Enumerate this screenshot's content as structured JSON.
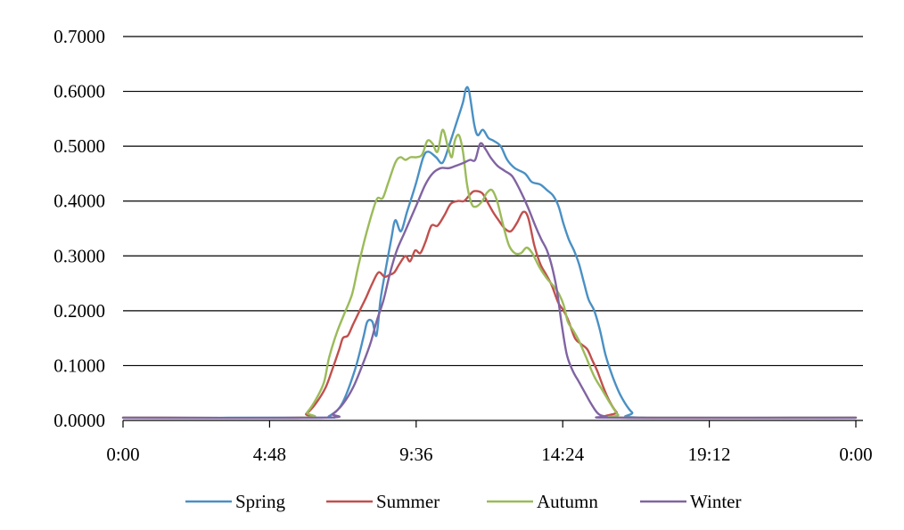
{
  "chart_data": {
    "type": "line",
    "title": "",
    "xlabel": "",
    "ylabel": "",
    "xlim": [
      0,
      1440
    ],
    "ylim": [
      0,
      0.7
    ],
    "x_ticks": [
      {
        "value": 0,
        "label": "0:00"
      },
      {
        "value": 288,
        "label": "4:48"
      },
      {
        "value": 576,
        "label": "9:36"
      },
      {
        "value": 864,
        "label": "14:24"
      },
      {
        "value": 1152,
        "label": "19:12"
      },
      {
        "value": 1440,
        "label": "0:00"
      }
    ],
    "y_ticks": [
      {
        "value": 0,
        "label": "0.0000"
      },
      {
        "value": 0.1,
        "label": "0.1000"
      },
      {
        "value": 0.2,
        "label": "0.2000"
      },
      {
        "value": 0.3,
        "label": "0.3000"
      },
      {
        "value": 0.4,
        "label": "0.4000"
      },
      {
        "value": 0.5,
        "label": "0.5000"
      },
      {
        "value": 0.6,
        "label": "0.6000"
      },
      {
        "value": 0.7,
        "label": "0.7000"
      }
    ],
    "grid": "horizontal",
    "legend_position": "bottom",
    "series": [
      {
        "name": "Spring",
        "color": "#4a90c4",
        "points": [
          [
            0,
            0.005
          ],
          [
            380,
            0.005
          ],
          [
            405,
            0.008
          ],
          [
            430,
            0.03
          ],
          [
            455,
            0.09
          ],
          [
            472,
            0.15
          ],
          [
            480,
            0.18
          ],
          [
            490,
            0.18
          ],
          [
            498,
            0.155
          ],
          [
            506,
            0.22
          ],
          [
            515,
            0.27
          ],
          [
            527,
            0.33
          ],
          [
            535,
            0.365
          ],
          [
            546,
            0.345
          ],
          [
            558,
            0.38
          ],
          [
            575,
            0.43
          ],
          [
            590,
            0.48
          ],
          [
            600,
            0.49
          ],
          [
            615,
            0.48
          ],
          [
            628,
            0.47
          ],
          [
            642,
            0.505
          ],
          [
            656,
            0.545
          ],
          [
            668,
            0.58
          ],
          [
            674,
            0.605
          ],
          [
            680,
            0.6
          ],
          [
            690,
            0.54
          ],
          [
            697,
            0.52
          ],
          [
            707,
            0.53
          ],
          [
            718,
            0.515
          ],
          [
            728,
            0.51
          ],
          [
            742,
            0.5
          ],
          [
            755,
            0.475
          ],
          [
            770,
            0.46
          ],
          [
            790,
            0.45
          ],
          [
            803,
            0.435
          ],
          [
            820,
            0.43
          ],
          [
            833,
            0.42
          ],
          [
            845,
            0.41
          ],
          [
            856,
            0.39
          ],
          [
            865,
            0.36
          ],
          [
            876,
            0.33
          ],
          [
            886,
            0.31
          ],
          [
            896,
            0.285
          ],
          [
            906,
            0.25
          ],
          [
            915,
            0.22
          ],
          [
            926,
            0.2
          ],
          [
            937,
            0.165
          ],
          [
            948,
            0.12
          ],
          [
            962,
            0.08
          ],
          [
            978,
            0.045
          ],
          [
            1000,
            0.015
          ],
          [
            1025,
            0.005
          ],
          [
            1440,
            0.005
          ]
        ]
      },
      {
        "name": "Summer",
        "color": "#c0504d",
        "points": [
          [
            0,
            0.005
          ],
          [
            345,
            0.005
          ],
          [
            360,
            0.012
          ],
          [
            378,
            0.03
          ],
          [
            398,
            0.06
          ],
          [
            412,
            0.095
          ],
          [
            425,
            0.13
          ],
          [
            432,
            0.15
          ],
          [
            442,
            0.155
          ],
          [
            452,
            0.175
          ],
          [
            465,
            0.2
          ],
          [
            478,
            0.225
          ],
          [
            490,
            0.25
          ],
          [
            502,
            0.27
          ],
          [
            514,
            0.262
          ],
          [
            523,
            0.265
          ],
          [
            533,
            0.27
          ],
          [
            543,
            0.285
          ],
          [
            555,
            0.3
          ],
          [
            564,
            0.29
          ],
          [
            574,
            0.31
          ],
          [
            584,
            0.305
          ],
          [
            594,
            0.325
          ],
          [
            606,
            0.355
          ],
          [
            618,
            0.355
          ],
          [
            632,
            0.375
          ],
          [
            644,
            0.395
          ],
          [
            658,
            0.4
          ],
          [
            670,
            0.4
          ],
          [
            680,
            0.41
          ],
          [
            690,
            0.418
          ],
          [
            705,
            0.415
          ],
          [
            715,
            0.4
          ],
          [
            727,
            0.38
          ],
          [
            738,
            0.365
          ],
          [
            750,
            0.35
          ],
          [
            762,
            0.345
          ],
          [
            774,
            0.36
          ],
          [
            786,
            0.38
          ],
          [
            796,
            0.37
          ],
          [
            808,
            0.32
          ],
          [
            820,
            0.285
          ],
          [
            832,
            0.265
          ],
          [
            843,
            0.245
          ],
          [
            855,
            0.215
          ],
          [
            866,
            0.2
          ],
          [
            876,
            0.18
          ],
          [
            888,
            0.15
          ],
          [
            899,
            0.14
          ],
          [
            912,
            0.13
          ],
          [
            922,
            0.11
          ],
          [
            932,
            0.09
          ],
          [
            944,
            0.06
          ],
          [
            956,
            0.035
          ],
          [
            970,
            0.015
          ],
          [
            985,
            0.005
          ],
          [
            1440,
            0.005
          ]
        ]
      },
      {
        "name": "Autumn",
        "color": "#9bbb59",
        "points": [
          [
            0,
            0.005
          ],
          [
            348,
            0.005
          ],
          [
            362,
            0.015
          ],
          [
            380,
            0.04
          ],
          [
            395,
            0.07
          ],
          [
            405,
            0.115
          ],
          [
            420,
            0.16
          ],
          [
            435,
            0.195
          ],
          [
            450,
            0.23
          ],
          [
            462,
            0.28
          ],
          [
            475,
            0.33
          ],
          [
            490,
            0.38
          ],
          [
            500,
            0.405
          ],
          [
            510,
            0.405
          ],
          [
            520,
            0.43
          ],
          [
            535,
            0.47
          ],
          [
            545,
            0.48
          ],
          [
            555,
            0.475
          ],
          [
            565,
            0.48
          ],
          [
            577,
            0.48
          ],
          [
            588,
            0.485
          ],
          [
            598,
            0.51
          ],
          [
            608,
            0.505
          ],
          [
            618,
            0.49
          ],
          [
            628,
            0.53
          ],
          [
            638,
            0.5
          ],
          [
            646,
            0.48
          ],
          [
            652,
            0.51
          ],
          [
            660,
            0.52
          ],
          [
            668,
            0.49
          ],
          [
            676,
            0.43
          ],
          [
            685,
            0.395
          ],
          [
            694,
            0.39
          ],
          [
            706,
            0.4
          ],
          [
            715,
            0.415
          ],
          [
            725,
            0.42
          ],
          [
            735,
            0.4
          ],
          [
            746,
            0.36
          ],
          [
            758,
            0.32
          ],
          [
            770,
            0.305
          ],
          [
            782,
            0.305
          ],
          [
            793,
            0.315
          ],
          [
            804,
            0.305
          ],
          [
            818,
            0.28
          ],
          [
            832,
            0.26
          ],
          [
            846,
            0.245
          ],
          [
            857,
            0.23
          ],
          [
            866,
            0.21
          ],
          [
            874,
            0.18
          ],
          [
            884,
            0.165
          ],
          [
            896,
            0.145
          ],
          [
            910,
            0.115
          ],
          [
            926,
            0.08
          ],
          [
            942,
            0.055
          ],
          [
            958,
            0.03
          ],
          [
            973,
            0.01
          ],
          [
            985,
            0.005
          ],
          [
            1440,
            0.005
          ]
        ]
      },
      {
        "name": "Winter",
        "color": "#8064a2",
        "points": [
          [
            0,
            0.005
          ],
          [
            390,
            0.005
          ],
          [
            412,
            0.012
          ],
          [
            432,
            0.03
          ],
          [
            452,
            0.06
          ],
          [
            470,
            0.1
          ],
          [
            486,
            0.14
          ],
          [
            498,
            0.18
          ],
          [
            512,
            0.22
          ],
          [
            525,
            0.27
          ],
          [
            538,
            0.31
          ],
          [
            552,
            0.34
          ],
          [
            566,
            0.37
          ],
          [
            580,
            0.4
          ],
          [
            594,
            0.43
          ],
          [
            608,
            0.45
          ],
          [
            624,
            0.46
          ],
          [
            640,
            0.46
          ],
          [
            656,
            0.465
          ],
          [
            670,
            0.47
          ],
          [
            682,
            0.475
          ],
          [
            692,
            0.475
          ],
          [
            702,
            0.505
          ],
          [
            712,
            0.495
          ],
          [
            722,
            0.48
          ],
          [
            735,
            0.465
          ],
          [
            750,
            0.455
          ],
          [
            765,
            0.445
          ],
          [
            780,
            0.42
          ],
          [
            795,
            0.39
          ],
          [
            810,
            0.355
          ],
          [
            822,
            0.33
          ],
          [
            833,
            0.31
          ],
          [
            843,
            0.28
          ],
          [
            852,
            0.24
          ],
          [
            862,
            0.175
          ],
          [
            872,
            0.12
          ],
          [
            884,
            0.09
          ],
          [
            896,
            0.07
          ],
          [
            908,
            0.05
          ],
          [
            920,
            0.03
          ],
          [
            934,
            0.012
          ],
          [
            950,
            0.007
          ],
          [
            970,
            0.005
          ],
          [
            1440,
            0.005
          ]
        ]
      }
    ]
  }
}
